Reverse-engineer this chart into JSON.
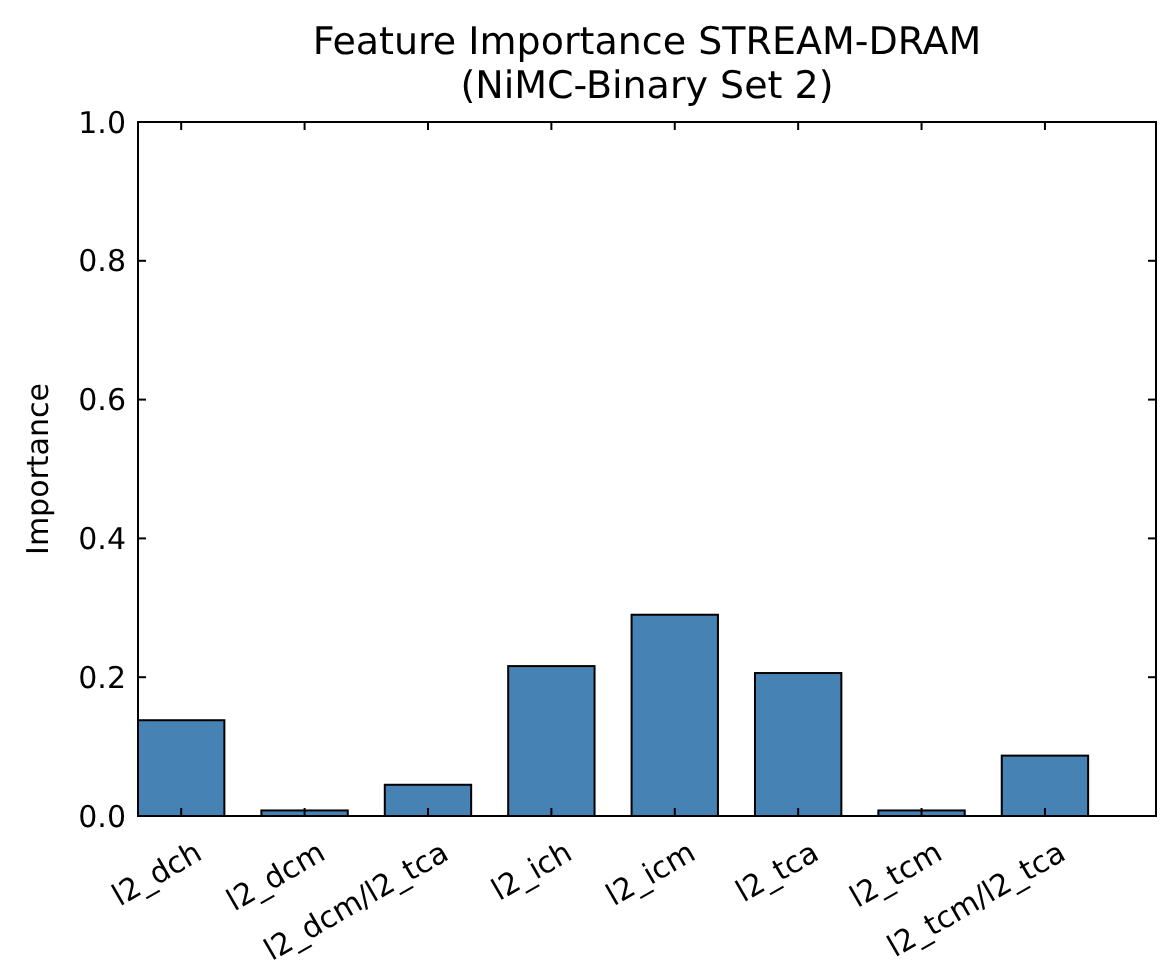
{
  "chart_data": {
    "type": "bar",
    "title": "Feature Importance STREAM-DRAM\n(NiMC-Binary Set 2)",
    "ylabel": "Importance",
    "categories": [
      "l2_dch",
      "l2_dcm",
      "l2_dcm/l2_tca",
      "l2_ich",
      "l2_icm",
      "l2_tca",
      "l2_tcm",
      "l2_tcm/l2_tca"
    ],
    "values": [
      0.138,
      0.008,
      0.045,
      0.216,
      0.29,
      0.206,
      0.008,
      0.087
    ],
    "color": "#4682b4",
    "ylim": [
      0,
      1
    ],
    "yticks": [
      {
        "value": 0,
        "label": "0.0"
      },
      {
        "value": 0.2,
        "label": "0.2"
      },
      {
        "value": 0.4,
        "label": "0.4"
      },
      {
        "value": 0.6,
        "label": "0.6"
      },
      {
        "value": 0.8,
        "label": "0.8"
      },
      {
        "value": 1,
        "label": "1.0"
      }
    ],
    "grid": false
  }
}
